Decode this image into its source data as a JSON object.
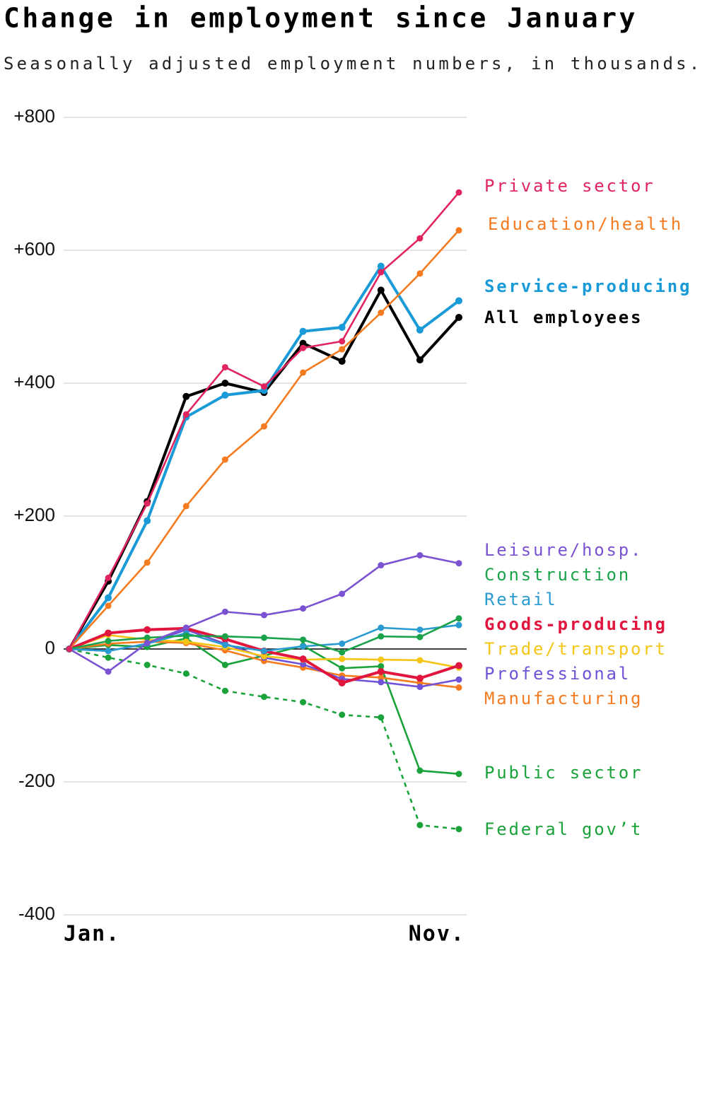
{
  "chart_data": {
    "type": "line",
    "title": "Change in employment since January",
    "subtitle": "Seasonally adjusted employment numbers, in thousands.",
    "categories": [
      "Jan.",
      null,
      null,
      null,
      null,
      null,
      null,
      null,
      null,
      null,
      "Nov."
    ],
    "ylim": [
      -400,
      800
    ],
    "yticks": [
      {
        "value": 800,
        "label": "+800"
      },
      {
        "value": 600,
        "label": "+600"
      },
      {
        "value": 400,
        "label": "+400"
      },
      {
        "value": 200,
        "label": "+200"
      },
      0,
      {
        "value": -200,
        "label": "-200"
      },
      {
        "value": -400,
        "label": "-400"
      }
    ],
    "grid": true,
    "series": [
      {
        "name": "Private sector",
        "color": "#e0245e",
        "values": [
          0,
          107,
          219,
          353,
          424,
          395,
          453,
          463,
          567,
          618,
          687
        ]
      },
      {
        "name": "Education/health",
        "color": "#f47b20",
        "values": [
          0,
          65,
          130,
          215,
          285,
          335,
          416,
          451,
          506,
          565,
          630
        ]
      },
      {
        "name": "Service-producing",
        "color": "#1a9bd7",
        "bold": true,
        "values": [
          0,
          77,
          193,
          349,
          382,
          389,
          478,
          484,
          576,
          480,
          524
        ]
      },
      {
        "name": "All employees",
        "color": "#000000",
        "bold": true,
        "values": [
          0,
          102,
          222,
          380,
          400,
          386,
          460,
          433,
          540,
          435,
          499
        ]
      },
      {
        "name": "Leisure/hosp.",
        "color": "#7b52d1",
        "values": [
          0,
          -34,
          9,
          32,
          56,
          51,
          61,
          83,
          126,
          141,
          129
        ]
      },
      {
        "name": "Construction",
        "color": "#1aa34a",
        "values": [
          0,
          12,
          17,
          20,
          19,
          17,
          14,
          -5,
          19,
          18,
          46
        ]
      },
      {
        "name": "Retail",
        "color": "#2a9bd0",
        "values": [
          0,
          -3,
          8,
          24,
          6,
          -3,
          4,
          8,
          32,
          29,
          36
        ]
      },
      {
        "name": "Goods-producing",
        "color": "#e0163f",
        "bold": true,
        "values": [
          0,
          24,
          29,
          31,
          15,
          -3,
          -15,
          -51,
          -34,
          -44,
          -25
        ]
      },
      {
        "name": "Trade/transport",
        "color": "#f5c518",
        "values": [
          0,
          21,
          14,
          11,
          3,
          -11,
          -16,
          -15,
          -16,
          -17,
          -28
        ]
      },
      {
        "name": "Professional",
        "color": "#7052d6",
        "values": [
          0,
          -3,
          8,
          29,
          8,
          -13,
          -23,
          -45,
          -50,
          -57,
          -46
        ]
      },
      {
        "name": "Manufacturing",
        "color": "#f47b20",
        "values": [
          0,
          8,
          11,
          9,
          -2,
          -18,
          -28,
          -40,
          -43,
          -51,
          -58
        ]
      },
      {
        "name": "Public sector",
        "color": "#1aa33a",
        "values": [
          0,
          6,
          3,
          16,
          -24,
          -10,
          5,
          -29,
          -26,
          -183,
          -188
        ]
      },
      {
        "name": "Federal gov’t",
        "color": "#1aa33a",
        "line_style": "dashed",
        "values": [
          0,
          -13,
          -24,
          -37,
          -63,
          -72,
          -80,
          -99,
          -103,
          -265,
          -271
        ]
      }
    ]
  }
}
